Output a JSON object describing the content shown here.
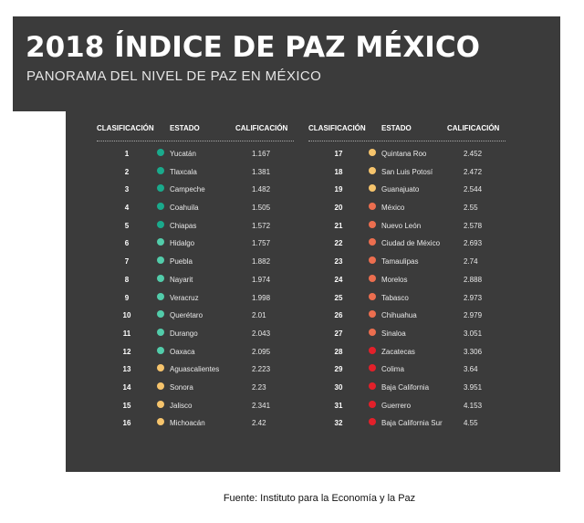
{
  "header": {
    "title": "2018 ÍNDICE DE PAZ MÉXICO",
    "subtitle": "PANORAMA DEL NIVEL DE PAZ EN MÉXICO"
  },
  "table": {
    "columns": {
      "rank": "CLASIFICACIÓN",
      "state": "ESTADO",
      "score": "CALIFICACIÓN"
    },
    "colors": {
      "teal": "#1aaa8c",
      "mint": "#52ccaa",
      "yellow": "#f6c46c",
      "orange": "#ec6e4f",
      "red": "#e3202a"
    },
    "rows": [
      {
        "rank": "1",
        "state": "Yucatán",
        "score": "1.167",
        "color": "#1aaa8c"
      },
      {
        "rank": "2",
        "state": "Tlaxcala",
        "score": "1.381",
        "color": "#1aaa8c"
      },
      {
        "rank": "3",
        "state": "Campeche",
        "score": "1.482",
        "color": "#1aaa8c"
      },
      {
        "rank": "4",
        "state": "Coahuila",
        "score": "1.505",
        "color": "#1aaa8c"
      },
      {
        "rank": "5",
        "state": "Chiapas",
        "score": "1.572",
        "color": "#1aaa8c"
      },
      {
        "rank": "6",
        "state": "Hidalgo",
        "score": "1.757",
        "color": "#52ccaa"
      },
      {
        "rank": "7",
        "state": "Puebla",
        "score": "1.882",
        "color": "#52ccaa"
      },
      {
        "rank": "8",
        "state": "Nayarit",
        "score": "1.974",
        "color": "#52ccaa"
      },
      {
        "rank": "9",
        "state": "Veracruz",
        "score": "1.998",
        "color": "#52ccaa"
      },
      {
        "rank": "10",
        "state": "Querétaro",
        "score": "2.01",
        "color": "#52ccaa"
      },
      {
        "rank": "11",
        "state": "Durango",
        "score": "2.043",
        "color": "#52ccaa"
      },
      {
        "rank": "12",
        "state": "Oaxaca",
        "score": "2.095",
        "color": "#52ccaa"
      },
      {
        "rank": "13",
        "state": "Aguascalientes",
        "score": "2.223",
        "color": "#f6c46c"
      },
      {
        "rank": "14",
        "state": "Sonora",
        "score": "2.23",
        "color": "#f6c46c"
      },
      {
        "rank": "15",
        "state": "Jalisco",
        "score": "2.341",
        "color": "#f6c46c"
      },
      {
        "rank": "16",
        "state": "Michoacán",
        "score": "2.42",
        "color": "#f6c46c"
      },
      {
        "rank": "17",
        "state": "Quintana Roo",
        "score": "2.452",
        "color": "#f6c46c"
      },
      {
        "rank": "18",
        "state": "San Luis Potosí",
        "score": "2.472",
        "color": "#f6c46c"
      },
      {
        "rank": "19",
        "state": "Guanajuato",
        "score": "2.544",
        "color": "#f6c46c"
      },
      {
        "rank": "20",
        "state": "México",
        "score": "2.55",
        "color": "#ec6e4f"
      },
      {
        "rank": "21",
        "state": "Nuevo León",
        "score": "2.578",
        "color": "#ec6e4f"
      },
      {
        "rank": "22",
        "state": "Ciudad de México",
        "score": "2.693",
        "color": "#ec6e4f"
      },
      {
        "rank": "23",
        "state": "Tamaulipas",
        "score": "2.74",
        "color": "#ec6e4f"
      },
      {
        "rank": "24",
        "state": "Morelos",
        "score": "2.888",
        "color": "#ec6e4f"
      },
      {
        "rank": "25",
        "state": "Tabasco",
        "score": "2.973",
        "color": "#ec6e4f"
      },
      {
        "rank": "26",
        "state": "Chihuahua",
        "score": "2.979",
        "color": "#ec6e4f"
      },
      {
        "rank": "27",
        "state": "Sinaloa",
        "score": "3.051",
        "color": "#ec6e4f"
      },
      {
        "rank": "28",
        "state": "Zacatecas",
        "score": "3.306",
        "color": "#e3202a"
      },
      {
        "rank": "29",
        "state": "Colima",
        "score": "3.64",
        "color": "#e3202a"
      },
      {
        "rank": "30",
        "state": "Baja California",
        "score": "3.951",
        "color": "#e3202a"
      },
      {
        "rank": "31",
        "state": "Guerrero",
        "score": "4.153",
        "color": "#e3202a"
      },
      {
        "rank": "32",
        "state": "Baja California Sur",
        "score": "4.55",
        "color": "#e3202a"
      }
    ]
  },
  "source": "Fuente: Instituto para la Economía y la Paz"
}
